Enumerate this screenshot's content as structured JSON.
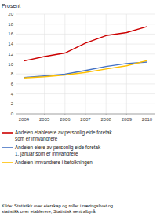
{
  "chart_data": {
    "type": "line",
    "ylabel": "Prosent",
    "source": "Kilde: Statistikk over eierskap og roller i næringslivet og\nstatistikk over etablerere, Statistisk sentralbyrå.",
    "x": [
      2004,
      2005,
      2006,
      2007,
      2008,
      2009,
      2010
    ],
    "series": [
      {
        "name": "Andelen etablerere av personlig eide foretak\nsom er innvandrere",
        "color": "#cc0000",
        "values": [
          10.6,
          11.5,
          12.2,
          14.2,
          15.7,
          16.3,
          17.5
        ]
      },
      {
        "name": "Andelen eiere av personlig eide foretak\n1. januar som er innvandrere",
        "color": "#4472c4",
        "values": [
          7.3,
          7.6,
          7.95,
          8.7,
          9.5,
          10.1,
          10.4
        ]
      },
      {
        "name": "Andelen innvandrere i befolkningen",
        "color": "#ffc000",
        "values": [
          7.2,
          7.45,
          7.8,
          8.3,
          9.0,
          9.65,
          10.7
        ]
      }
    ],
    "xlim": [
      2003.6,
      2010.4
    ],
    "xticks": [
      2004,
      2005,
      2006,
      2007,
      2008,
      2009,
      2010
    ],
    "ylim": [
      0,
      20
    ],
    "yticks": [
      0,
      2,
      4,
      6,
      8,
      10,
      12,
      14,
      16,
      18,
      20
    ],
    "grid": true,
    "legend": "bottom"
  }
}
